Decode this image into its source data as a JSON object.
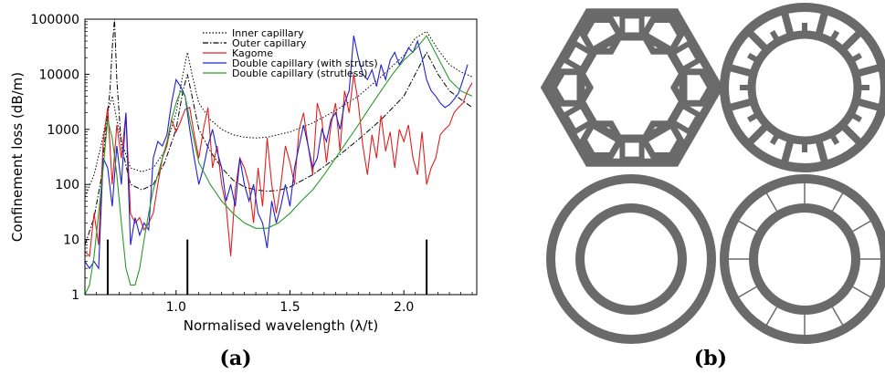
{
  "chart_data": {
    "type": "line",
    "title": "",
    "xlabel": "Normalised wavelength (λ/t)",
    "ylabel": "Confinement loss (dB/m)",
    "xlim": [
      0.6,
      2.32
    ],
    "ylim": [
      1,
      100000
    ],
    "yscale": "log",
    "grid": false,
    "legend_position": "top-center",
    "x_ticks": [
      {
        "value": 1.0,
        "label": "1.0"
      },
      {
        "value": 1.5,
        "label": "1.5"
      },
      {
        "value": 2.0,
        "label": "2.0"
      }
    ],
    "y_ticks": [
      {
        "value": 1,
        "label": "1"
      },
      {
        "value": 10,
        "label": "10"
      },
      {
        "value": 100,
        "label": "100"
      },
      {
        "value": 1000,
        "label": "1000"
      },
      {
        "value": 10000,
        "label": "10000"
      },
      {
        "value": 100000,
        "label": "100000"
      }
    ],
    "markers": [
      {
        "x": 0.7,
        "y": 10
      },
      {
        "x": 1.05,
        "y": 10
      },
      {
        "x": 2.1,
        "y": 10
      }
    ],
    "series": [
      {
        "name": "Inner capillary",
        "color": "#000000",
        "style": "dotted",
        "points": [
          [
            0.6,
            60
          ],
          [
            0.64,
            150
          ],
          [
            0.67,
            500
          ],
          [
            0.7,
            2000
          ],
          [
            0.72,
            4000
          ],
          [
            0.74,
            1500
          ],
          [
            0.76,
            600
          ],
          [
            0.8,
            200
          ],
          [
            0.85,
            170
          ],
          [
            0.9,
            200
          ],
          [
            0.95,
            400
          ],
          [
            1.0,
            2000
          ],
          [
            1.03,
            10000
          ],
          [
            1.05,
            25000
          ],
          [
            1.07,
            10000
          ],
          [
            1.1,
            3000
          ],
          [
            1.15,
            1500
          ],
          [
            1.2,
            1000
          ],
          [
            1.25,
            800
          ],
          [
            1.3,
            720
          ],
          [
            1.35,
            700
          ],
          [
            1.4,
            720
          ],
          [
            1.5,
            900
          ],
          [
            1.6,
            1300
          ],
          [
            1.7,
            2200
          ],
          [
            1.8,
            4000
          ],
          [
            1.9,
            9000
          ],
          [
            2.0,
            22000
          ],
          [
            2.05,
            45000
          ],
          [
            2.1,
            60000
          ],
          [
            2.15,
            28000
          ],
          [
            2.2,
            15000
          ],
          [
            2.25,
            11000
          ],
          [
            2.3,
            9000
          ]
        ]
      },
      {
        "name": "Outer capillary",
        "color": "#000000",
        "style": "dashdot",
        "points": [
          [
            0.6,
            8
          ],
          [
            0.64,
            25
          ],
          [
            0.67,
            120
          ],
          [
            0.69,
            800
          ],
          [
            0.71,
            5000
          ],
          [
            0.72,
            30000
          ],
          [
            0.73,
            100000
          ],
          [
            0.74,
            8000
          ],
          [
            0.76,
            500
          ],
          [
            0.8,
            100
          ],
          [
            0.85,
            80
          ],
          [
            0.9,
            100
          ],
          [
            0.95,
            250
          ],
          [
            1.0,
            1000
          ],
          [
            1.03,
            5000
          ],
          [
            1.05,
            10000
          ],
          [
            1.07,
            4000
          ],
          [
            1.1,
            1000
          ],
          [
            1.15,
            400
          ],
          [
            1.2,
            200
          ],
          [
            1.25,
            120
          ],
          [
            1.3,
            90
          ],
          [
            1.35,
            80
          ],
          [
            1.4,
            75
          ],
          [
            1.45,
            78
          ],
          [
            1.5,
            90
          ],
          [
            1.6,
            150
          ],
          [
            1.7,
            300
          ],
          [
            1.8,
            650
          ],
          [
            1.9,
            1500
          ],
          [
            2.0,
            4000
          ],
          [
            2.05,
            10000
          ],
          [
            2.1,
            25000
          ],
          [
            2.15,
            10000
          ],
          [
            2.2,
            5000
          ],
          [
            2.25,
            3500
          ],
          [
            2.3,
            2500
          ]
        ]
      },
      {
        "name": "Kagome",
        "color": "#e02020",
        "style": "solid",
        "points": [
          [
            0.6,
            6
          ],
          [
            0.62,
            5
          ],
          [
            0.64,
            30
          ],
          [
            0.66,
            8
          ],
          [
            0.68,
            600
          ],
          [
            0.7,
            2500
          ],
          [
            0.72,
            100
          ],
          [
            0.74,
            1200
          ],
          [
            0.76,
            300
          ],
          [
            0.78,
            2000
          ],
          [
            0.8,
            30
          ],
          [
            0.82,
            20
          ],
          [
            0.84,
            25
          ],
          [
            0.86,
            15
          ],
          [
            0.88,
            20
          ],
          [
            0.9,
            30
          ],
          [
            0.92,
            100
          ],
          [
            0.94,
            300
          ],
          [
            0.96,
            500
          ],
          [
            0.98,
            1500
          ],
          [
            1.0,
            900
          ],
          [
            1.02,
            1400
          ],
          [
            1.04,
            2300
          ],
          [
            1.06,
            2500
          ],
          [
            1.08,
            800
          ],
          [
            1.1,
            300
          ],
          [
            1.12,
            1000
          ],
          [
            1.14,
            2500
          ],
          [
            1.16,
            200
          ],
          [
            1.18,
            500
          ],
          [
            1.2,
            100
          ],
          [
            1.22,
            40
          ],
          [
            1.24,
            5
          ],
          [
            1.26,
            80
          ],
          [
            1.28,
            300
          ],
          [
            1.3,
            200
          ],
          [
            1.32,
            100
          ],
          [
            1.34,
            20
          ],
          [
            1.36,
            200
          ],
          [
            1.38,
            40
          ],
          [
            1.4,
            700
          ],
          [
            1.42,
            100
          ],
          [
            1.44,
            30
          ],
          [
            1.46,
            100
          ],
          [
            1.48,
            500
          ],
          [
            1.5,
            250
          ],
          [
            1.52,
            100
          ],
          [
            1.54,
            1000
          ],
          [
            1.56,
            2000
          ],
          [
            1.58,
            500
          ],
          [
            1.6,
            150
          ],
          [
            1.62,
            3000
          ],
          [
            1.64,
            1500
          ],
          [
            1.66,
            250
          ],
          [
            1.68,
            1200
          ],
          [
            1.7,
            3000
          ],
          [
            1.72,
            400
          ],
          [
            1.74,
            5000
          ],
          [
            1.76,
            2000
          ],
          [
            1.78,
            10000
          ],
          [
            1.8,
            3000
          ],
          [
            1.82,
            500
          ],
          [
            1.84,
            150
          ],
          [
            1.86,
            800
          ],
          [
            1.88,
            300
          ],
          [
            1.9,
            1800
          ],
          [
            1.92,
            400
          ],
          [
            1.94,
            900
          ],
          [
            1.96,
            200
          ],
          [
            1.98,
            1000
          ],
          [
            2.0,
            600
          ],
          [
            2.02,
            1200
          ],
          [
            2.04,
            300
          ],
          [
            2.06,
            150
          ],
          [
            2.08,
            900
          ],
          [
            2.1,
            100
          ],
          [
            2.12,
            200
          ],
          [
            2.14,
            300
          ],
          [
            2.16,
            800
          ],
          [
            2.18,
            1000
          ],
          [
            2.2,
            1200
          ],
          [
            2.22,
            2000
          ],
          [
            2.24,
            2500
          ],
          [
            2.26,
            3000
          ],
          [
            2.28,
            5000
          ],
          [
            2.3,
            7000
          ]
        ]
      },
      {
        "name": "Double capillary (with struts)",
        "color": "#2020d0",
        "style": "solid",
        "points": [
          [
            0.6,
            4
          ],
          [
            0.62,
            3
          ],
          [
            0.64,
            4
          ],
          [
            0.66,
            3
          ],
          [
            0.68,
            300
          ],
          [
            0.7,
            200
          ],
          [
            0.72,
            40
          ],
          [
            0.74,
            500
          ],
          [
            0.76,
            100
          ],
          [
            0.78,
            2000
          ],
          [
            0.8,
            8
          ],
          [
            0.82,
            25
          ],
          [
            0.84,
            12
          ],
          [
            0.86,
            20
          ],
          [
            0.88,
            15
          ],
          [
            0.9,
            300
          ],
          [
            0.92,
            600
          ],
          [
            0.94,
            500
          ],
          [
            0.96,
            800
          ],
          [
            0.98,
            3000
          ],
          [
            1.0,
            8000
          ],
          [
            1.02,
            6000
          ],
          [
            1.04,
            4000
          ],
          [
            1.06,
            1000
          ],
          [
            1.08,
            300
          ],
          [
            1.1,
            100
          ],
          [
            1.12,
            200
          ],
          [
            1.14,
            500
          ],
          [
            1.16,
            1000
          ],
          [
            1.18,
            400
          ],
          [
            1.2,
            200
          ],
          [
            1.22,
            50
          ],
          [
            1.24,
            100
          ],
          [
            1.26,
            40
          ],
          [
            1.28,
            300
          ],
          [
            1.3,
            100
          ],
          [
            1.32,
            50
          ],
          [
            1.34,
            100
          ],
          [
            1.36,
            30
          ],
          [
            1.38,
            20
          ],
          [
            1.4,
            7
          ],
          [
            1.42,
            50
          ],
          [
            1.44,
            20
          ],
          [
            1.46,
            40
          ],
          [
            1.48,
            100
          ],
          [
            1.5,
            40
          ],
          [
            1.52,
            200
          ],
          [
            1.54,
            500
          ],
          [
            1.56,
            1200
          ],
          [
            1.58,
            500
          ],
          [
            1.6,
            200
          ],
          [
            1.62,
            300
          ],
          [
            1.64,
            1000
          ],
          [
            1.66,
            600
          ],
          [
            1.68,
            1500
          ],
          [
            1.7,
            2000
          ],
          [
            1.72,
            1000
          ],
          [
            1.74,
            3000
          ],
          [
            1.76,
            5000
          ],
          [
            1.78,
            50000
          ],
          [
            1.8,
            20000
          ],
          [
            1.82,
            10000
          ],
          [
            1.84,
            8000
          ],
          [
            1.86,
            12000
          ],
          [
            1.88,
            6000
          ],
          [
            1.9,
            15000
          ],
          [
            1.92,
            8000
          ],
          [
            1.94,
            18000
          ],
          [
            1.96,
            25000
          ],
          [
            1.98,
            15000
          ],
          [
            2.0,
            20000
          ],
          [
            2.02,
            30000
          ],
          [
            2.04,
            25000
          ],
          [
            2.06,
            40000
          ],
          [
            2.08,
            20000
          ],
          [
            2.1,
            8000
          ],
          [
            2.12,
            5000
          ],
          [
            2.14,
            4000
          ],
          [
            2.16,
            3000
          ],
          [
            2.18,
            2500
          ],
          [
            2.2,
            2800
          ],
          [
            2.22,
            3500
          ],
          [
            2.24,
            4500
          ],
          [
            2.26,
            8000
          ],
          [
            2.28,
            15000
          ]
        ]
      },
      {
        "name": "Double capillary (strutless)",
        "color": "#2a9a2a",
        "style": "solid",
        "points": [
          [
            0.6,
            1
          ],
          [
            0.62,
            1.5
          ],
          [
            0.64,
            5
          ],
          [
            0.66,
            30
          ],
          [
            0.68,
            200
          ],
          [
            0.7,
            1500
          ],
          [
            0.72,
            700
          ],
          [
            0.74,
            150
          ],
          [
            0.76,
            20
          ],
          [
            0.78,
            3
          ],
          [
            0.8,
            1.5
          ],
          [
            0.82,
            1.5
          ],
          [
            0.84,
            3
          ],
          [
            0.86,
            10
          ],
          [
            0.88,
            30
          ],
          [
            0.9,
            80
          ],
          [
            0.92,
            150
          ],
          [
            0.94,
            300
          ],
          [
            0.96,
            600
          ],
          [
            0.98,
            1500
          ],
          [
            1.0,
            3000
          ],
          [
            1.02,
            5000
          ],
          [
            1.04,
            4000
          ],
          [
            1.06,
            1500
          ],
          [
            1.08,
            600
          ],
          [
            1.1,
            250
          ],
          [
            1.15,
            100
          ],
          [
            1.2,
            50
          ],
          [
            1.25,
            30
          ],
          [
            1.3,
            20
          ],
          [
            1.35,
            16
          ],
          [
            1.4,
            16
          ],
          [
            1.45,
            20
          ],
          [
            1.5,
            30
          ],
          [
            1.55,
            50
          ],
          [
            1.6,
            80
          ],
          [
            1.65,
            150
          ],
          [
            1.7,
            300
          ],
          [
            1.75,
            600
          ],
          [
            1.8,
            1200
          ],
          [
            1.85,
            2500
          ],
          [
            1.9,
            5000
          ],
          [
            1.95,
            10000
          ],
          [
            2.0,
            18000
          ],
          [
            2.05,
            28000
          ],
          [
            2.1,
            50000
          ],
          [
            2.15,
            20000
          ],
          [
            2.2,
            8000
          ],
          [
            2.25,
            5000
          ],
          [
            2.3,
            4000
          ]
        ]
      }
    ]
  },
  "figure": {
    "panel_a_label": "(a)",
    "panel_b_label": "(b)",
    "schematic_color": "#6a6a6a",
    "schematics": [
      {
        "name": "kagome-cladding-schematic"
      },
      {
        "name": "double-capillary-with-struts-schematic"
      },
      {
        "name": "inner-outer-capillary-schematic"
      },
      {
        "name": "double-capillary-thin-struts-schematic"
      }
    ]
  }
}
